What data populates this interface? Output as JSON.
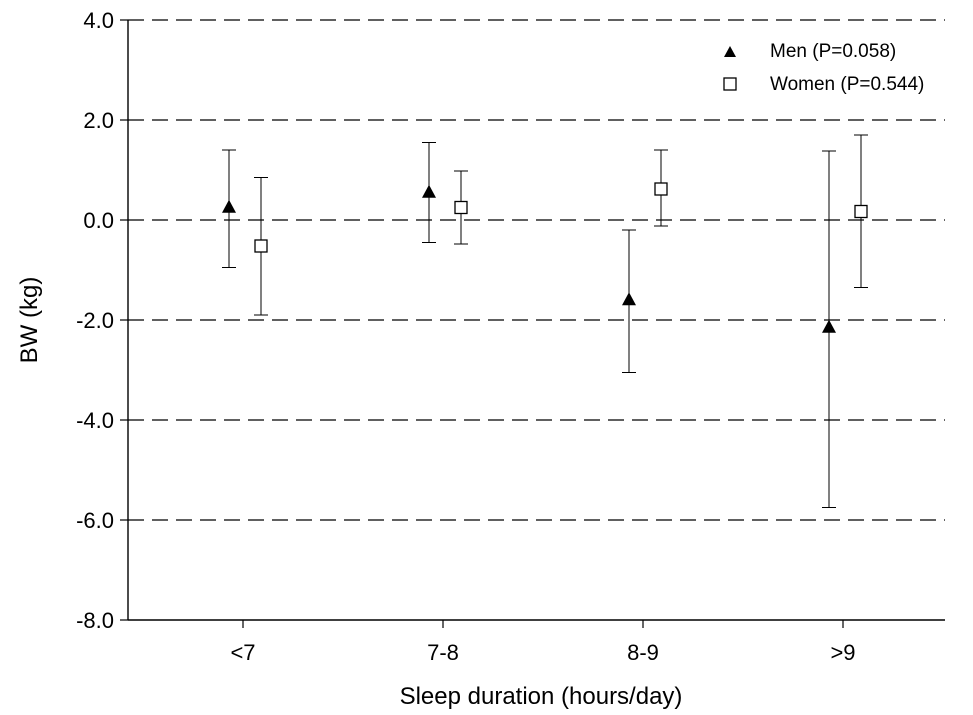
{
  "chart_data": {
    "type": "scatter",
    "categories": [
      "<7",
      "7-8",
      "8-9",
      ">9"
    ],
    "xlabel": "Sleep duration (hours/day)",
    "ylabel": "BW (kg)",
    "ylim": [
      -8.0,
      4.0
    ],
    "yticks": [
      "-8.0",
      "-6.0",
      "-4.0",
      "-2.0",
      "0.0",
      "2.0",
      "4.0"
    ],
    "grid": "dashed horizontal",
    "legend_position": "top-right",
    "series": [
      {
        "name": "Men (P=0.058)",
        "marker": "filled-triangle",
        "color": "#000000",
        "values": [
          0.25,
          0.55,
          -1.6,
          -2.15
        ],
        "lower": [
          -0.95,
          -0.45,
          -3.05,
          -5.75
        ],
        "upper": [
          1.4,
          1.55,
          -0.2,
          1.38
        ]
      },
      {
        "name": "Women (P=0.544)",
        "marker": "open-square",
        "color": "#000000",
        "values": [
          -0.52,
          0.25,
          0.62,
          0.17
        ],
        "lower": [
          -1.9,
          -0.48,
          -0.12,
          -1.35
        ],
        "upper": [
          0.85,
          0.98,
          1.4,
          1.7
        ]
      }
    ]
  }
}
